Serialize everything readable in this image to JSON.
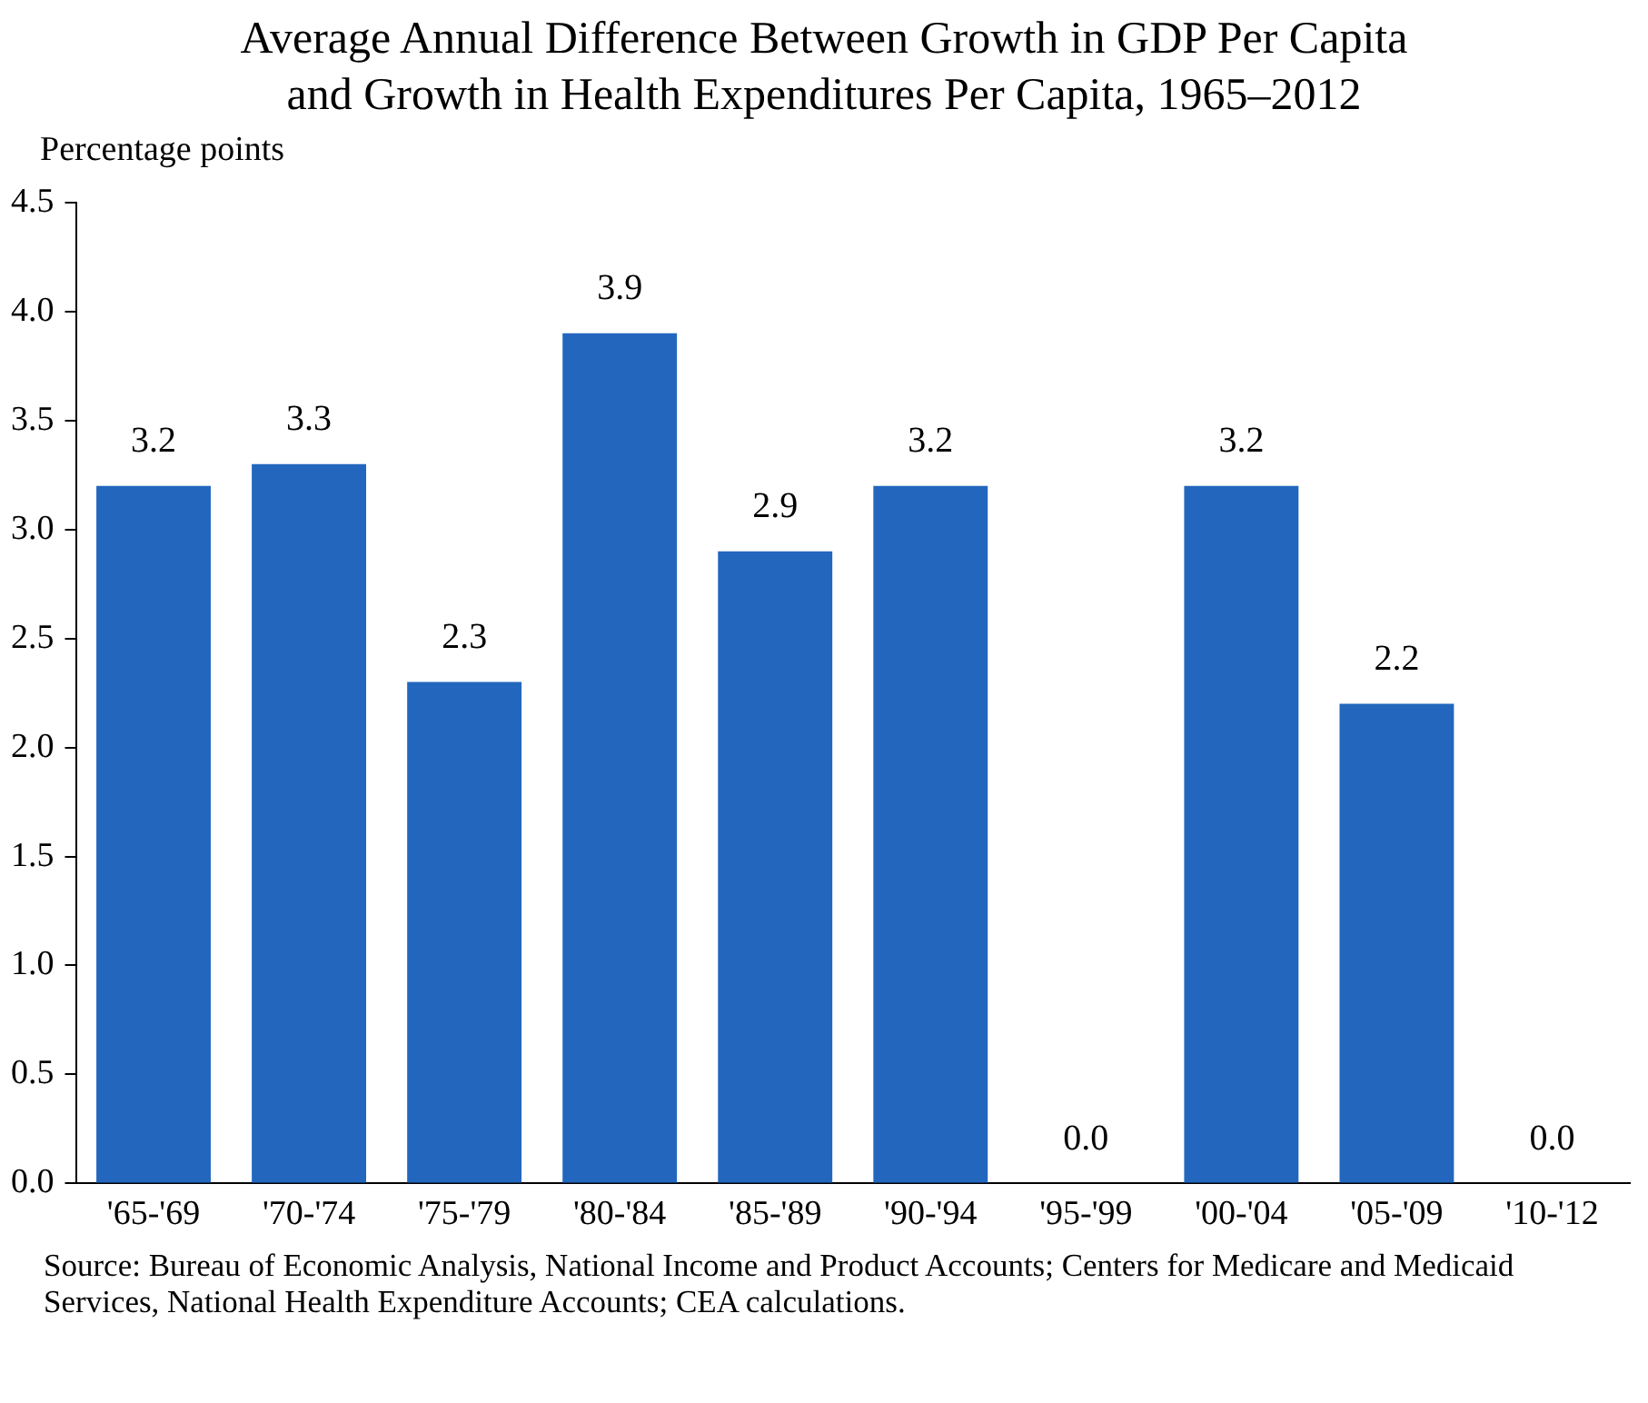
{
  "chart_data": {
    "type": "bar",
    "title": "Average Annual Difference Between Growth in GDP Per Capita\nand Growth in Health Expenditures Per Capita, 1965–2012",
    "ylabel": "Percentage points",
    "categories": [
      "'65-'69",
      "'70-'74",
      "'75-'79",
      "'80-'84",
      "'85-'89",
      "'90-'94",
      "'95-'99",
      "'00-'04",
      "'05-'09",
      "'10-'12"
    ],
    "values": [
      3.2,
      3.3,
      2.3,
      3.9,
      2.9,
      3.2,
      0.0,
      3.2,
      2.2,
      0.0
    ],
    "color": "#2267bd",
    "ylim": [
      0,
      4.5
    ],
    "yticks": [
      {
        "value": 0,
        "label": "0.0"
      },
      {
        "value": 0.5,
        "label": "0.5"
      },
      {
        "value": 1,
        "label": "1.0"
      },
      {
        "value": 1.5,
        "label": "1.5"
      },
      {
        "value": 2,
        "label": "2.0"
      },
      {
        "value": 2.5,
        "label": "2.5"
      },
      {
        "value": 3,
        "label": "3.0"
      },
      {
        "value": 3.5,
        "label": "3.5"
      },
      {
        "value": 4,
        "label": "4.0"
      },
      {
        "value": 4.5,
        "label": "4.5"
      }
    ],
    "grid": false,
    "legend": false,
    "value_labels": [
      "3.2",
      "3.3",
      "2.3",
      "3.9",
      "2.9",
      "3.2",
      "0.0",
      "3.2",
      "2.2",
      "0.0"
    ],
    "annotations": [
      "Source: Bureau of Economic Analysis, National Income and Product Accounts; Centers for Medicare and Medicaid Services, National Health Expenditure Accounts; CEA calculations."
    ]
  }
}
